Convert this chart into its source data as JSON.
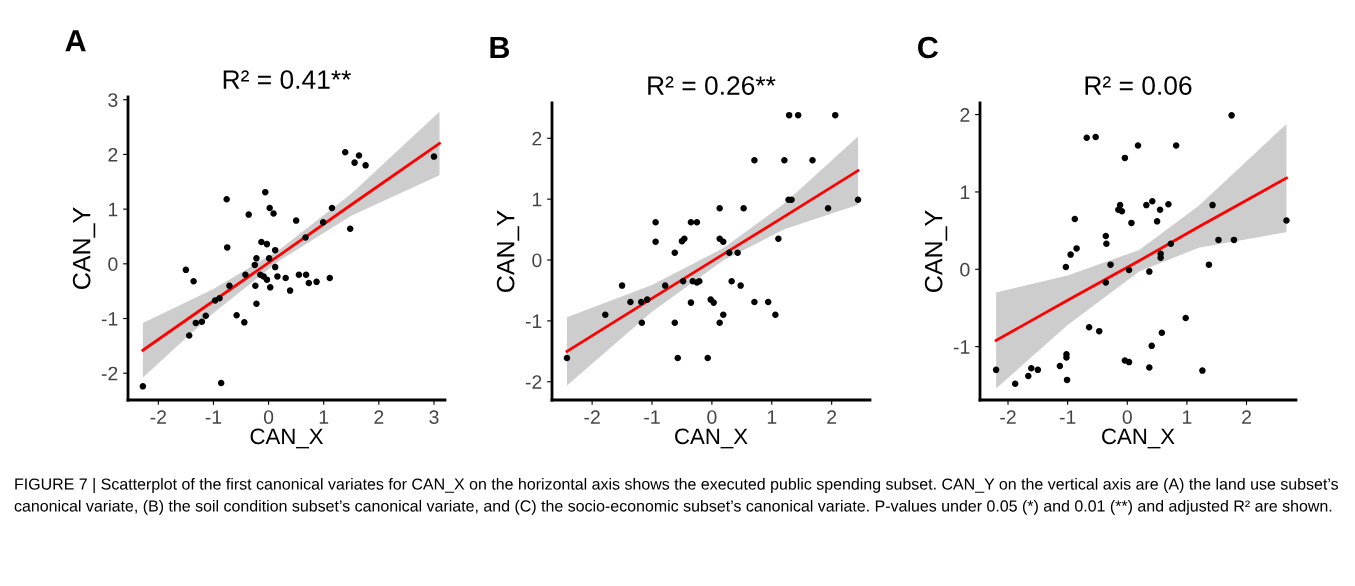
{
  "chart_data": [
    {
      "type": "scatter",
      "title": "R² = 0.41**",
      "xlabel": "CAN_X",
      "ylabel": "CAN_Y",
      "annotations": [
        "A",
        "FIGURE 7 | Scatterplot of the first canonical variates for CAN_X on the horizontal axis shows the executed public spending subset. CAN_Y on the vertical axis are (A) the land use subset’s canonical variate, (B) the soil condition subset’s canonical variate, and (C) the socio-economic subset’s canonical variate. P-values under 0.05 (*) and 0.01 (**) and adjusted R² are shown."
      ],
      "xlim": [
        -2.55,
        3.2
      ],
      "ylim": [
        -2.49,
        3.05
      ],
      "xticks": [
        -2,
        -1,
        0,
        1,
        2,
        3
      ],
      "yticks": [
        -2,
        -1,
        0,
        1,
        2,
        3
      ],
      "grid": false,
      "series": [
        {
          "marker": "circle",
          "color": "#000000",
          "x": [
            -2.28,
            -0.86,
            -1.5,
            -1.36,
            -1.44,
            -1.32,
            -1.21,
            -1.14,
            -0.97,
            -0.89,
            -0.71,
            -0.58,
            -0.44,
            -0.76,
            -0.75,
            -0.36,
            -0.42,
            -0.25,
            -0.22,
            -0.24,
            -0.22,
            -0.15,
            -0.09,
            -0.03,
            0.03,
            -0.13,
            -0.03,
            -0.06,
            0.02,
            0.09,
            0.01,
            0.12,
            0.12,
            0.16,
            0.31,
            0.39,
            0.5,
            0.55,
            0.67,
            0.68,
            0.73,
            0.87,
            1.11,
            0.99,
            1.15,
            1.48,
            1.39,
            1.56,
            1.64,
            1.76,
            3.0
          ],
          "values": [
            -2.24,
            -2.18,
            -0.11,
            -0.32,
            -1.31,
            -1.08,
            -1.06,
            -0.95,
            -0.67,
            -0.63,
            -0.4,
            -0.94,
            -1.07,
            1.18,
            0.3,
            0.9,
            -0.2,
            -0.02,
            0.1,
            -0.4,
            -0.73,
            -0.2,
            -0.23,
            -0.29,
            -0.43,
            0.4,
            0.36,
            1.31,
            1.02,
            0.92,
            0.1,
            0.25,
            -0.06,
            -0.23,
            -0.26,
            -0.49,
            0.79,
            -0.2,
            0.48,
            -0.2,
            -0.35,
            -0.33,
            -0.26,
            0.76,
            1.02,
            0.64,
            2.04,
            1.85,
            1.98,
            1.8,
            1.96
          ]
        },
        {
          "type": "line",
          "color": "#ff0000",
          "x": [
            -2.28,
            -1,
            0.2,
            1.5,
            3.1
          ],
          "values": [
            -1.58,
            -0.68,
            0.16,
            1.08,
            2.2
          ],
          "lower": [
            -2.08,
            -0.9,
            0.06,
            0.88,
            1.62
          ],
          "upper": [
            -1.08,
            -0.46,
            0.26,
            1.28,
            2.78
          ]
        }
      ]
    },
    {
      "type": "scatter",
      "title": "R² = 0.26**",
      "xlabel": "CAN_X",
      "ylabel": "CAN_Y",
      "annotations": [
        "B"
      ],
      "xlim": [
        -2.67,
        2.64
      ],
      "ylim": [
        -2.3,
        2.58
      ],
      "xticks": [
        -2,
        -1,
        0,
        1,
        2
      ],
      "yticks": [
        -2,
        -1,
        0,
        1,
        2
      ],
      "grid": false,
      "series": [
        {
          "marker": "circle",
          "color": "#000000",
          "x": [
            -2.42,
            -1.78,
            -1.5,
            -1.36,
            -1.18,
            -1.08,
            -1.17,
            -0.94,
            -0.94,
            -0.78,
            -0.62,
            -0.62,
            -0.57,
            -0.5,
            -0.46,
            -0.48,
            -0.35,
            -0.25,
            -0.35,
            -0.32,
            -0.25,
            -0.21,
            -0.07,
            -0.02,
            0.03,
            0.13,
            0.13,
            0.19,
            0.13,
            0.19,
            0.29,
            0.43,
            0.33,
            0.48,
            0.53,
            0.71,
            0.71,
            0.94,
            1.06,
            1.11,
            1.21,
            1.28,
            1.33,
            1.29,
            1.44,
            1.68,
            1.94,
            2.06,
            2.44
          ],
          "values": [
            -1.61,
            -0.9,
            -0.42,
            -0.69,
            -0.69,
            -0.65,
            -1.03,
            0.62,
            0.3,
            -0.42,
            0.12,
            -1.03,
            -1.61,
            0.31,
            0.35,
            -0.35,
            0.62,
            0.62,
            -0.7,
            -0.35,
            -0.37,
            -0.35,
            -1.61,
            -0.65,
            -0.7,
            0.85,
            0.35,
            0.3,
            -1.03,
            -0.9,
            0.12,
            0.12,
            -0.35,
            -0.42,
            0.85,
            1.64,
            -0.69,
            -0.69,
            -0.9,
            0.35,
            1.64,
            0.99,
            0.99,
            2.38,
            2.38,
            1.64,
            0.85,
            2.38,
            0.99
          ]
        },
        {
          "type": "line",
          "color": "#ff0000",
          "x": [
            -2.42,
            -1,
            0.2,
            1.2,
            2.44
          ],
          "values": [
            -1.5,
            -0.63,
            0.1,
            0.71,
            1.47
          ],
          "lower": [
            -2.06,
            -0.85,
            0.0,
            0.5,
            0.91
          ],
          "upper": [
            -0.94,
            -0.41,
            0.2,
            0.92,
            2.03
          ]
        }
      ]
    },
    {
      "type": "scatter",
      "title": "R² = 0.06",
      "xlabel": "CAN_X",
      "ylabel": "CAN_Y",
      "annotations": [
        "C"
      ],
      "xlim": [
        -2.47,
        2.83
      ],
      "ylim": [
        -1.69,
        2.15
      ],
      "xticks": [
        -2,
        -1,
        0,
        1,
        2
      ],
      "yticks": [
        -1,
        0,
        1,
        2
      ],
      "grid": false,
      "series": [
        {
          "marker": "circle",
          "color": "#000000",
          "x": [
            -2.2,
            -1.88,
            -1.66,
            -1.61,
            -1.5,
            -1.13,
            -1.02,
            -1.02,
            -1.01,
            -1.03,
            -0.95,
            -0.85,
            -0.88,
            -0.68,
            -0.53,
            -0.64,
            -0.47,
            -0.36,
            -0.35,
            -0.36,
            -0.28,
            -0.12,
            -0.15,
            -0.09,
            -0.04,
            -0.04,
            0.03,
            0.03,
            0.07,
            0.18,
            0.32,
            0.42,
            0.37,
            0.37,
            0.41,
            0.55,
            0.5,
            0.56,
            0.56,
            0.58,
            0.69,
            0.73,
            0.82,
            0.98,
            1.26,
            1.37,
            1.43,
            1.53,
            1.75,
            1.79,
            2.67
          ],
          "values": [
            -1.3,
            -1.48,
            -1.38,
            -1.28,
            -1.3,
            -1.25,
            -1.1,
            -1.14,
            -1.43,
            0.03,
            0.19,
            0.27,
            0.65,
            1.7,
            1.71,
            -0.75,
            -0.8,
            0.43,
            0.33,
            -0.17,
            0.06,
            0.83,
            0.77,
            0.75,
            1.44,
            -1.18,
            -1.2,
            -0.01,
            0.6,
            1.6,
            0.83,
            0.88,
            -0.03,
            -1.27,
            -0.99,
            0.77,
            0.62,
            0.2,
            0.15,
            -0.82,
            0.84,
            0.33,
            1.6,
            -0.63,
            -1.31,
            0.06,
            0.83,
            0.38,
            1.99,
            0.38,
            0.63
          ]
        },
        {
          "type": "line",
          "color": "#ff0000",
          "x": [
            -2.2,
            -1,
            0.2,
            1.2,
            2.67
          ],
          "values": [
            -0.92,
            -0.4,
            0.11,
            0.55,
            1.18
          ],
          "lower": [
            -1.54,
            -0.72,
            -0.03,
            0.28,
            0.48
          ],
          "upper": [
            -0.3,
            -0.08,
            0.25,
            0.82,
            1.88
          ]
        }
      ]
    }
  ]
}
